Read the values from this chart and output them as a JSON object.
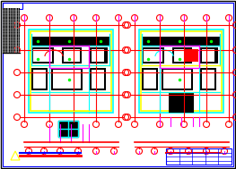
{
  "fig_bg": "#ffffff",
  "draw_area_bg": "#ffffff",
  "red": "#ff0000",
  "yellow": "#ffff00",
  "cyan": "#00ffff",
  "magenta": "#ff00ff",
  "green": "#00ff00",
  "white": "#ffffff",
  "black": "#000000",
  "blue": "#0000ff",
  "dark_blue": "#0000aa",
  "navy": "#000080",
  "left_hatch_bg": "#000000",
  "border_outer": "#000000",
  "border_blue": "#0000ff"
}
